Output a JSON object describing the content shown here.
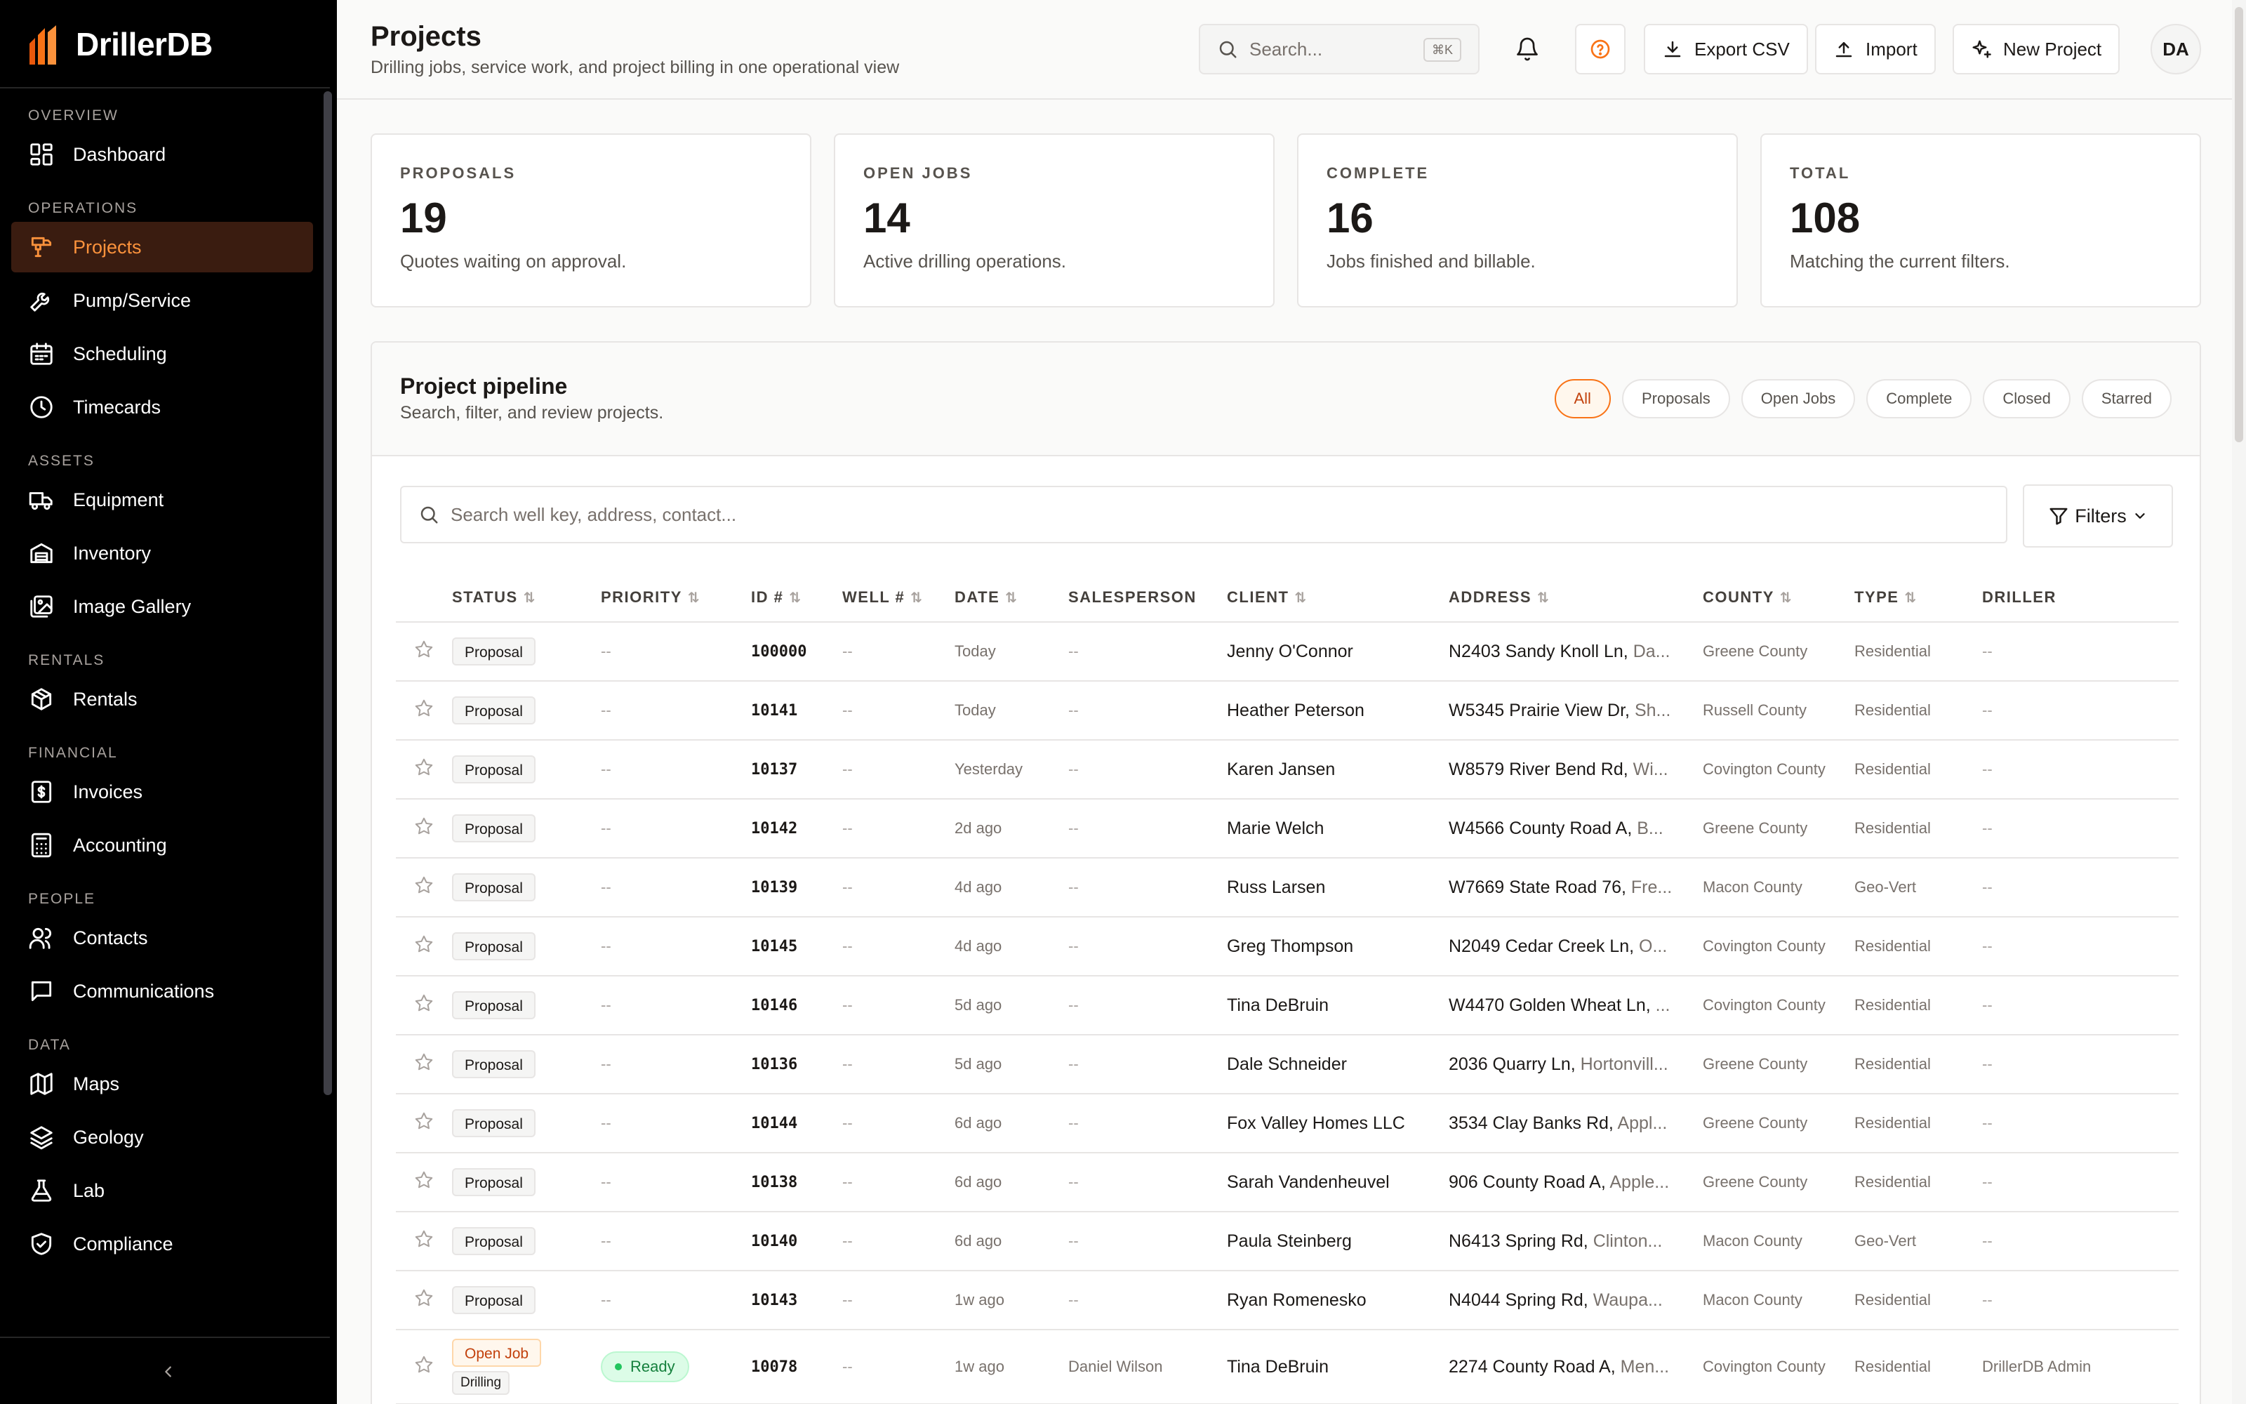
{
  "brand": {
    "name": "DrillerDB"
  },
  "sidebar": {
    "sections": [
      {
        "title": "OVERVIEW",
        "items": [
          {
            "label": "Dashboard",
            "icon": "dashboard-icon"
          }
        ]
      },
      {
        "title": "OPERATIONS",
        "items": [
          {
            "label": "Projects",
            "icon": "drill-icon",
            "active": true
          },
          {
            "label": "Pump/Service",
            "icon": "wrench-icon"
          },
          {
            "label": "Scheduling",
            "icon": "calendar-icon"
          },
          {
            "label": "Timecards",
            "icon": "clock-icon"
          }
        ]
      },
      {
        "title": "ASSETS",
        "items": [
          {
            "label": "Equipment",
            "icon": "truck-icon"
          },
          {
            "label": "Inventory",
            "icon": "warehouse-icon"
          },
          {
            "label": "Image Gallery",
            "icon": "image-gallery-icon"
          }
        ]
      },
      {
        "title": "RENTALS",
        "items": [
          {
            "label": "Rentals",
            "icon": "package-icon"
          }
        ]
      },
      {
        "title": "FINANCIAL",
        "items": [
          {
            "label": "Invoices",
            "icon": "invoice-icon"
          },
          {
            "label": "Accounting",
            "icon": "calculator-icon"
          }
        ]
      },
      {
        "title": "PEOPLE",
        "items": [
          {
            "label": "Contacts",
            "icon": "users-icon"
          },
          {
            "label": "Communications",
            "icon": "message-icon"
          }
        ]
      },
      {
        "title": "DATA",
        "items": [
          {
            "label": "Maps",
            "icon": "map-icon"
          },
          {
            "label": "Geology",
            "icon": "layers-icon"
          },
          {
            "label": "Lab",
            "icon": "flask-icon"
          },
          {
            "label": "Compliance",
            "icon": "shield-check-icon"
          }
        ]
      }
    ]
  },
  "header": {
    "title": "Projects",
    "subtitle": "Drilling jobs, service work, and project billing in one operational view",
    "search_placeholder": "Search...",
    "search_shortcut": "⌘K",
    "export_label": "Export CSV",
    "import_label": "Import",
    "new_project_label": "New Project",
    "avatar_initials": "DA"
  },
  "stats": [
    {
      "label": "PROPOSALS",
      "value": "19",
      "desc": "Quotes waiting on approval."
    },
    {
      "label": "OPEN JOBS",
      "value": "14",
      "desc": "Active drilling operations."
    },
    {
      "label": "COMPLETE",
      "value": "16",
      "desc": "Jobs finished and billable."
    },
    {
      "label": "TOTAL",
      "value": "108",
      "desc": "Matching the current filters."
    }
  ],
  "pipeline": {
    "title": "Project pipeline",
    "subtitle": "Search, filter, and review projects.",
    "filters": [
      "All",
      "Proposals",
      "Open Jobs",
      "Complete",
      "Closed",
      "Starred"
    ],
    "active_filter": "All",
    "search_placeholder": "Search well key, address, contact...",
    "filters_label": "Filters"
  },
  "table": {
    "columns": [
      "STATUS",
      "PRIORITY",
      "ID #",
      "WELL #",
      "DATE",
      "SALESPERSON",
      "CLIENT",
      "ADDRESS",
      "COUNTY",
      "TYPE",
      "DRILLER"
    ],
    "rows": [
      {
        "status": "Proposal",
        "priority": "--",
        "id": "100000",
        "well": "--",
        "date": "Today",
        "salesperson": "--",
        "client": "Jenny O'Connor",
        "street": "N2403 Sandy Knoll Ln,",
        "city": "Da...",
        "county": "Greene County",
        "type": "Residential",
        "driller": "--"
      },
      {
        "status": "Proposal",
        "priority": "--",
        "id": "10141",
        "well": "--",
        "date": "Today",
        "salesperson": "--",
        "client": "Heather Peterson",
        "street": "W5345 Prairie View Dr,",
        "city": "Sh...",
        "county": "Russell County",
        "type": "Residential",
        "driller": "--"
      },
      {
        "status": "Proposal",
        "priority": "--",
        "id": "10137",
        "well": "--",
        "date": "Yesterday",
        "salesperson": "--",
        "client": "Karen Jansen",
        "street": "W8579 River Bend Rd,",
        "city": "Wi...",
        "county": "Covington County",
        "type": "Residential",
        "driller": "--"
      },
      {
        "status": "Proposal",
        "priority": "--",
        "id": "10142",
        "well": "--",
        "date": "2d ago",
        "salesperson": "--",
        "client": "Marie Welch",
        "street": "W4566 County Road A,",
        "city": "B...",
        "county": "Greene County",
        "type": "Residential",
        "driller": "--"
      },
      {
        "status": "Proposal",
        "priority": "--",
        "id": "10139",
        "well": "--",
        "date": "4d ago",
        "salesperson": "--",
        "client": "Russ Larsen",
        "street": "W7669 State Road 76,",
        "city": "Fre...",
        "county": "Macon County",
        "type": "Geo-Vert",
        "driller": "--"
      },
      {
        "status": "Proposal",
        "priority": "--",
        "id": "10145",
        "well": "--",
        "date": "4d ago",
        "salesperson": "--",
        "client": "Greg Thompson",
        "street": "N2049 Cedar Creek Ln,",
        "city": "O...",
        "county": "Covington County",
        "type": "Residential",
        "driller": "--"
      },
      {
        "status": "Proposal",
        "priority": "--",
        "id": "10146",
        "well": "--",
        "date": "5d ago",
        "salesperson": "--",
        "client": "Tina DeBruin",
        "street": "W4470 Golden Wheat Ln,",
        "city": "...",
        "county": "Covington County",
        "type": "Residential",
        "driller": "--"
      },
      {
        "status": "Proposal",
        "priority": "--",
        "id": "10136",
        "well": "--",
        "date": "5d ago",
        "salesperson": "--",
        "client": "Dale Schneider",
        "street": "2036 Quarry Ln,",
        "city": "Hortonvill...",
        "county": "Greene County",
        "type": "Residential",
        "driller": "--"
      },
      {
        "status": "Proposal",
        "priority": "--",
        "id": "10144",
        "well": "--",
        "date": "6d ago",
        "salesperson": "--",
        "client": "Fox Valley Homes LLC",
        "street": "3534 Clay Banks Rd,",
        "city": "Appl...",
        "county": "Greene County",
        "type": "Residential",
        "driller": "--"
      },
      {
        "status": "Proposal",
        "priority": "--",
        "id": "10138",
        "well": "--",
        "date": "6d ago",
        "salesperson": "--",
        "client": "Sarah Vandenheuvel",
        "street": "906 County Road A,",
        "city": "Apple...",
        "county": "Greene County",
        "type": "Residential",
        "driller": "--"
      },
      {
        "status": "Proposal",
        "priority": "--",
        "id": "10140",
        "well": "--",
        "date": "6d ago",
        "salesperson": "--",
        "client": "Paula Steinberg",
        "street": "N6413 Spring Rd,",
        "city": "Clinton...",
        "county": "Macon County",
        "type": "Geo-Vert",
        "driller": "--"
      },
      {
        "status": "Proposal",
        "priority": "--",
        "id": "10143",
        "well": "--",
        "date": "1w ago",
        "salesperson": "--",
        "client": "Ryan Romenesko",
        "street": "N4044 Spring Rd,",
        "city": "Waupa...",
        "county": "Macon County",
        "type": "Residential",
        "driller": "--"
      },
      {
        "status": "Open Job",
        "sub_status": "Drilling",
        "priority_badge": "Ready",
        "id": "10078",
        "well": "--",
        "date": "1w ago",
        "salesperson": "Daniel Wilson",
        "client": "Tina DeBruin",
        "street": "2274 County Road A,",
        "city": "Men...",
        "county": "Covington County",
        "type": "Residential",
        "driller": "DrillerDB Admin"
      }
    ]
  },
  "colors": {
    "accent": "#f97316",
    "sidebar_bg": "#000000",
    "active_bg": "#3a1c10",
    "ready_green": "#15803d"
  }
}
